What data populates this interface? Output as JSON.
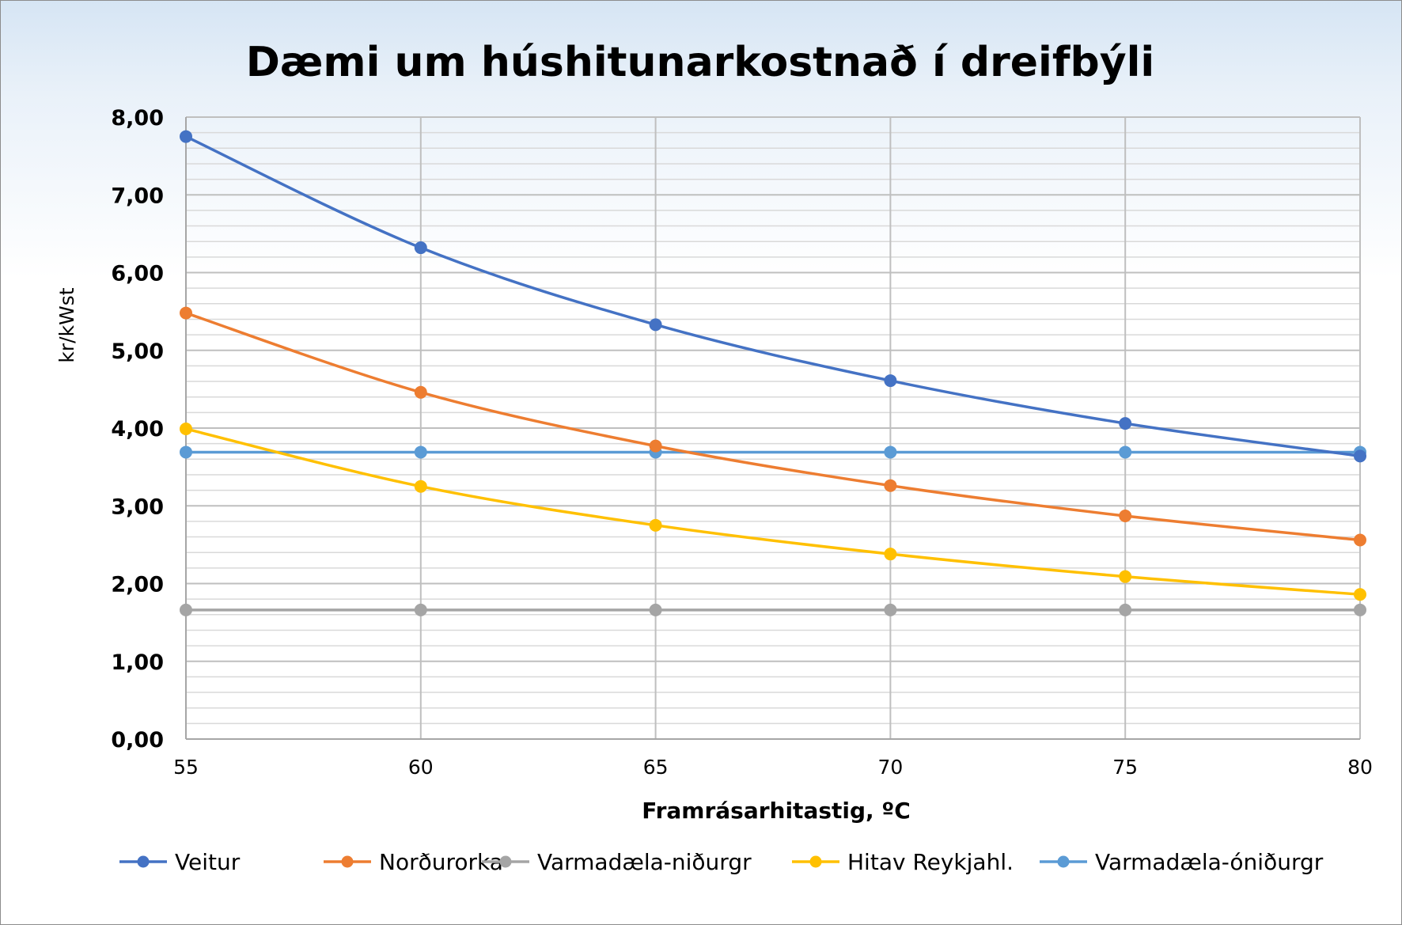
{
  "chart_data": {
    "type": "line",
    "title": "Dæmi um húshitunarkostnað í dreifbýli",
    "xlabel": "Framrásarhitastig, ºC",
    "ylabel": "kr/kWst",
    "x": [
      55,
      60,
      65,
      70,
      75,
      80
    ],
    "x_tick_labels": [
      "55",
      "60",
      "65",
      "70",
      "75",
      "80"
    ],
    "ylim": [
      0,
      8
    ],
    "y_tick_labels": [
      "0,00",
      "1,00",
      "2,00",
      "3,00",
      "4,00",
      "5,00",
      "6,00",
      "7,00",
      "8,00"
    ],
    "grid": true,
    "legend_position": "bottom",
    "series": [
      {
        "name": "Veitur",
        "color": "#4472c4",
        "values": [
          7.75,
          6.32,
          5.33,
          4.61,
          4.06,
          3.64
        ]
      },
      {
        "name": "Norðurorka",
        "color": "#ed7d31",
        "values": [
          5.48,
          4.46,
          3.77,
          3.26,
          2.87,
          2.56
        ]
      },
      {
        "name": "Varmadæla-niðurgr",
        "color": "#a5a5a5",
        "values": [
          1.66,
          1.66,
          1.66,
          1.66,
          1.66,
          1.66
        ]
      },
      {
        "name": "Hitav Reykjahl.",
        "color": "#ffc000",
        "values": [
          3.99,
          3.25,
          2.75,
          2.38,
          2.09,
          1.86
        ]
      },
      {
        "name": "Varmadæla-óniðurgr",
        "color": "#5b9bd5",
        "values": [
          3.69,
          3.69,
          3.69,
          3.69,
          3.69,
          3.69
        ]
      }
    ]
  }
}
